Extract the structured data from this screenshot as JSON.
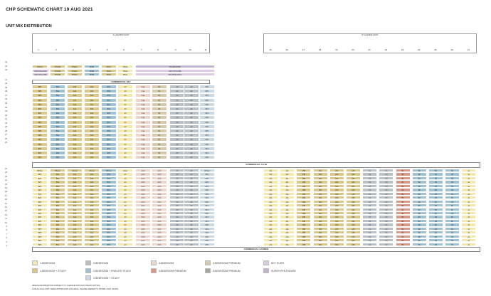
{
  "title": "CHP SCHEMATIC CHART 19 AUG 2021",
  "subtitle": "UNIT MIX DISTRIBUTION",
  "blocks": {
    "left_label": "1 CLARKE QUAY",
    "right_label": "5 CLARKE QUAY",
    "left_stack_numbers": [
      "1",
      "2",
      "3",
      "4",
      "5",
      "6",
      "7",
      "8",
      "9",
      "10",
      "11"
    ],
    "right_stack_numbers": [
      "15",
      "16",
      "17",
      "18",
      "19",
      "20",
      "21",
      "22",
      "23",
      "24",
      "25",
      "26",
      "27"
    ]
  },
  "bands": {
    "commercial_sky": "COMMERCIAL SKY",
    "commercial_club": "COMMERCIAL CLUB",
    "commercial_garden": "COMMERCIAL GARDEN"
  },
  "penthouse": {
    "header_labels": [
      "PH2AA",
      "PH2AB",
      "PH2AC",
      "PH2B",
      "PH2C",
      "PH4A",
      "",
      "",
      "",
      "",
      "PH (PH3-PH6)"
    ],
    "row43_left": "SPA (PH2+PH3)",
    "row42_left": "SPA (PH4+PH5)",
    "row43_right": "SPA (PH7+PH8)",
    "row42_right": "SPA (PH9+PH10)"
  },
  "floor_labels_top": [
    "44",
    "43",
    "42",
    "41",
    "40",
    "39",
    "38",
    "37",
    "36",
    "35",
    "34",
    "33",
    "32",
    "31",
    "30",
    "29",
    "28",
    "27",
    "26",
    "25"
  ],
  "floor_labels_bottom": [
    "24",
    "23",
    "22",
    "21",
    "20",
    "19",
    "18",
    "17",
    "16",
    "15",
    "14",
    "13",
    "12",
    "11",
    "10",
    "9",
    "8",
    "7",
    "6",
    "5",
    "4"
  ],
  "upper_row_codes": [
    "BP3",
    "B5a",
    "A3A",
    "A5A",
    "B5C",
    "A3",
    "C1a",
    "B1",
    "A2",
    "A2",
    "DP1"
  ],
  "lower_left_codes": [
    "BP3",
    "B5a",
    "A3A",
    "A5A",
    "B5C",
    "A3",
    "AC3",
    "AC3",
    "A3",
    "A3",
    "DP1"
  ],
  "lower_right_codes": [
    "A3L",
    "A3L",
    "A5B",
    "A5A",
    "A5C",
    "A5C",
    "C1",
    "C3",
    "B1",
    "B2",
    "B3",
    "B1",
    "A1"
  ],
  "lower_header_left": [
    "BP3(a)",
    "B5a(a)",
    "A3A(a)",
    "A5A(a)",
    "B5C(a)",
    "A3(a)",
    "AC3",
    "AC3",
    "A3",
    "A3",
    "DP1(a)"
  ],
  "colors": {
    "one_bed": "#f3e8b0",
    "one_bed_study": "#d9c88a",
    "two_bed": "#b9c1c6",
    "two_bed_ensuite": "#9fc2d2",
    "two_bed_study": "#c9d8e2",
    "three_bed": "#ecd6cc",
    "three_bed_premium": "#d79a88",
    "four_bed_premium": "#d6c9ac",
    "five_bed_premium": "#a3a79a",
    "sky_suite": "#dccbe3",
    "super_penthouse": "#c4b6d3"
  },
  "legend": [
    {
      "label": "1-BEDROOM",
      "color": "one_bed"
    },
    {
      "label": "1-BEDROOM + STUDY",
      "color": "one_bed_study"
    },
    {
      "label": "2-BEDROOM",
      "color": "two_bed"
    },
    {
      "label": "2-BEDROOM + ENSUITE STUDY",
      "color": "two_bed_ensuite"
    },
    {
      "label": "2-BEDROOM + STUDY",
      "color": "two_bed_study"
    },
    {
      "label": "3-BEDROOM",
      "color": "three_bed"
    },
    {
      "label": "3-BEDROOM PREMIUM",
      "color": "three_bed_premium"
    },
    {
      "label": "4-BEDROOM PREMIUM",
      "color": "four_bed_premium"
    },
    {
      "label": "5-BEDROOM PREMIUM",
      "color": "five_bed_premium"
    },
    {
      "label": "SKY SUITE",
      "color": "sky_suite"
    },
    {
      "label": "SUPER PENTHOUSE",
      "color": "super_penthouse"
    }
  ],
  "notes": [
    "ABOVE INFORMATION SUBJECT TO CHANGE WITHOUT PRIOR NOTICE",
    "FOR ACTUAL UNIT ORIENTATION AND STACKING, PLEASE REFER TO STOREY KEY PLANS"
  ]
}
